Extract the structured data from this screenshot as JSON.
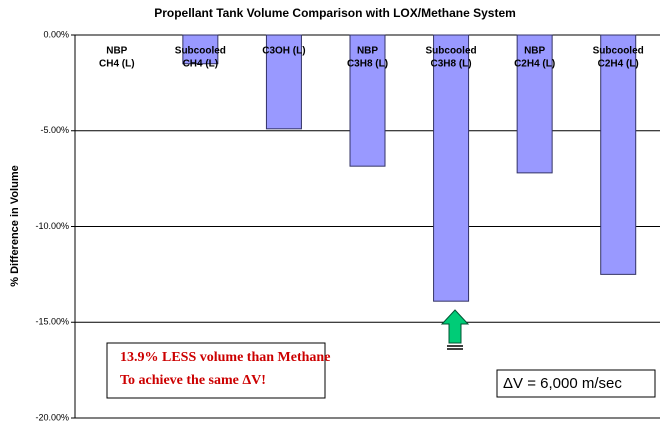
{
  "chart_data": {
    "type": "bar",
    "title": "Propellant Tank Volume Comparison with LOX/Methane System",
    "y_label": "% Difference in Volume",
    "categories": [
      [
        "NBP",
        "CH4 (L)"
      ],
      [
        "Subcooled",
        "CH4 (L)"
      ],
      [
        "C3OH (L)"
      ],
      [
        "NBP",
        "C3H8 (L)"
      ],
      [
        "Subcooled",
        "C3H8 (L)"
      ],
      [
        "NBP",
        "C2H4 (L)"
      ],
      [
        "Subcooled",
        "C2H4 (L)"
      ]
    ],
    "values": [
      0,
      -1.5,
      -4.9,
      -6.85,
      -13.9,
      -7.2,
      -12.5
    ],
    "color": "#9999ff",
    "ylim": [
      -20,
      0
    ],
    "yticks": [
      {
        "value": 0,
        "label": "0.00%"
      },
      {
        "value": -5,
        "label": "-5.00%"
      },
      {
        "value": -10,
        "label": "-10.00%"
      },
      {
        "value": -15,
        "label": "-15.00%"
      },
      {
        "value": -20,
        "label": "-20.00%"
      }
    ],
    "grid": true,
    "annotations": [
      "13.9% LESS volume than Methane",
      "To achieve the same ΔV!",
      "ΔV = 6,000 m/sec"
    ]
  }
}
